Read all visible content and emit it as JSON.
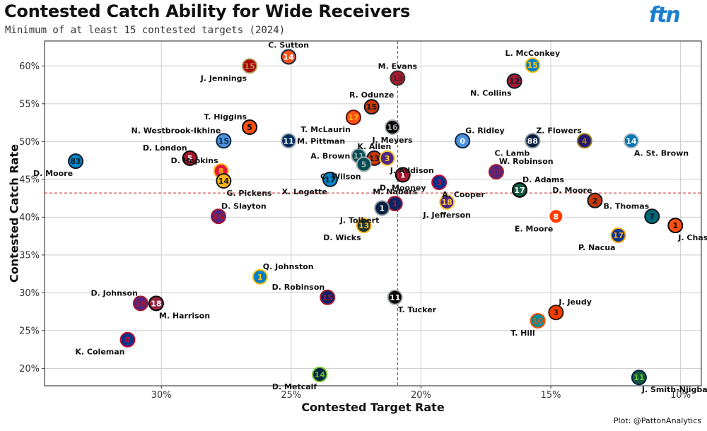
{
  "header": {
    "title": "Contested Catch Ability for Wide Receivers",
    "subtitle": "Minimum of at least 15 contested targets (2024)",
    "logo": "ftn"
  },
  "footer": {
    "credit": "Plot: @PattonAnalytics"
  },
  "chart_data": {
    "type": "scatter",
    "title": "Contested Catch Ability for Wide Receivers",
    "subtitle": "Minimum of at least 15 contested targets (2024)",
    "xlabel": "Contested Target Rate",
    "ylabel": "Contested Catch Rate",
    "x_axis_reversed": true,
    "xlim": [
      0.345,
      0.092
    ],
    "ylim": [
      0.177,
      0.633
    ],
    "x_ticks": [
      0.3,
      0.25,
      0.2,
      0.15,
      0.1
    ],
    "x_tick_labels": [
      "30%",
      "25%",
      "20%",
      "15%",
      "10%"
    ],
    "y_ticks": [
      0.2,
      0.25,
      0.3,
      0.35,
      0.4,
      0.45,
      0.5,
      0.55,
      0.6
    ],
    "y_tick_labels": [
      "20%",
      "25%",
      "30%",
      "35%",
      "40%",
      "45%",
      "50%",
      "55%",
      "60%"
    ],
    "grid": true,
    "reference_lines": {
      "x": 0.209,
      "y": 0.432,
      "color": "#cc2222",
      "style": "dashed"
    },
    "points": [
      {
        "name": "C. Sutton",
        "x": 0.251,
        "y": 0.612,
        "number": "14",
        "fill": "#fb4f14",
        "stroke": "#0a2343",
        "text_color": "#ffffff",
        "label_pos": "above"
      },
      {
        "name": "J. Jennings",
        "x": 0.266,
        "y": 0.6,
        "number": "15",
        "fill": "#aa0000",
        "stroke": "#b3995d",
        "text_color": "#b3995d",
        "label_pos": "below-left"
      },
      {
        "name": "M. Evans",
        "x": 0.209,
        "y": 0.584,
        "number": "13",
        "fill": "#a71930",
        "stroke": "#34302b",
        "text_color": "#34302b",
        "label_pos": "above"
      },
      {
        "name": "L. McConkey",
        "x": 0.157,
        "y": 0.601,
        "number": "15",
        "fill": "#0080c6",
        "stroke": "#ffc20e",
        "text_color": "#ffc20e",
        "label_pos": "above"
      },
      {
        "name": "N. Collins",
        "x": 0.164,
        "y": 0.58,
        "number": "12",
        "fill": "#a71930",
        "stroke": "#03202f",
        "text_color": "#03202f",
        "label_pos": "below-left"
      },
      {
        "name": "R. Odunze",
        "x": 0.219,
        "y": 0.546,
        "number": "15",
        "fill": "#c83803",
        "stroke": "#0b162a",
        "text_color": "#0b162a",
        "label_pos": "above"
      },
      {
        "name": "T. McLaurin",
        "x": 0.226,
        "y": 0.532,
        "number": "17",
        "fill": "#fb4f14",
        "stroke": "#5a1414",
        "text_color": "#ffb612",
        "label_pos": "below-left"
      },
      {
        "name": "T. Higgins",
        "x": 0.266,
        "y": 0.519,
        "number": "5",
        "fill": "#fb4f14",
        "stroke": "#000000",
        "text_color": "#000000",
        "label_pos": "above-left"
      },
      {
        "name": "J. Meyers",
        "x": 0.211,
        "y": 0.519,
        "number": "16",
        "fill": "#000000",
        "stroke": "#a5acaf",
        "text_color": "#a5acaf",
        "label_pos": "below"
      },
      {
        "name": "N. Westbrook-Ikhine",
        "x": 0.276,
        "y": 0.501,
        "number": "15",
        "fill": "#4b92db",
        "stroke": "#0c2340",
        "text_color": "#0c2340",
        "label_pos": "above-left"
      },
      {
        "name": "M. Pittman",
        "x": 0.251,
        "y": 0.501,
        "number": "11",
        "fill": "#002c5f",
        "stroke": "#a2aaad",
        "text_color": "#ffffff",
        "label_pos": "right"
      },
      {
        "name": "G. Ridley",
        "x": 0.184,
        "y": 0.501,
        "number": "0",
        "fill": "#4b92db",
        "stroke": "#0c2340",
        "text_color": "#ffffff",
        "label_pos": "above-right"
      },
      {
        "name": "C. Lamb",
        "x": 0.157,
        "y": 0.501,
        "number": "88",
        "fill": "#041e42",
        "stroke": "#869397",
        "text_color": "#ffffff",
        "label_pos": "below-left"
      },
      {
        "name": "Z. Flowers",
        "x": 0.137,
        "y": 0.501,
        "number": "4",
        "fill": "#241773",
        "stroke": "#9e7c0c",
        "text_color": "#9e7c0c",
        "label_pos": "above-left"
      },
      {
        "name": "A. St. Brown",
        "x": 0.119,
        "y": 0.501,
        "number": "14",
        "fill": "#0076b6",
        "stroke": "#b0b7bc",
        "text_color": "#ffffff",
        "label_pos": "below-right"
      },
      {
        "name": "D. Moore",
        "x": 0.333,
        "y": 0.474,
        "number": "83",
        "fill": "#0085ca",
        "stroke": "#101820",
        "text_color": "#101820",
        "label_pos": "below-left"
      },
      {
        "name": "D. London",
        "x": 0.289,
        "y": 0.478,
        "number": "5",
        "fill": "#a71930",
        "stroke": "#000000",
        "text_color": "#ffffff",
        "label_pos": "above-left"
      },
      {
        "name": "K. Allen",
        "x": 0.218,
        "y": 0.478,
        "number": "13",
        "fill": "#c83803",
        "stroke": "#0b162a",
        "text_color": "#0b162a",
        "label_pos": "above"
      },
      {
        "name": "A. Brown",
        "x": 0.224,
        "y": 0.481,
        "number": "11",
        "fill": "#004c54",
        "stroke": "#a5acaf",
        "text_color": "#a5acaf",
        "label_pos": "left"
      },
      {
        "name": "C. Wilson",
        "x": 0.222,
        "y": 0.47,
        "number": "5",
        "fill": "#004c54",
        "stroke": "#a5acaf",
        "text_color": "#a5acaf",
        "label_pos": "below-left"
      },
      {
        "name": "J. Addison",
        "x": 0.213,
        "y": 0.478,
        "number": "3",
        "fill": "#4f2683",
        "stroke": "#ffc62f",
        "text_color": "#ffc62f",
        "label_pos": "below-right"
      },
      {
        "name": "D. Hopkins",
        "x": 0.277,
        "y": 0.461,
        "number": "8",
        "fill": "#e31837",
        "stroke": "#ffb81c",
        "text_color": "#ffb81c",
        "label_pos": "above-left"
      },
      {
        "name": "G. Pickens",
        "x": 0.276,
        "y": 0.448,
        "number": "14",
        "fill": "#ffb612",
        "stroke": "#101820",
        "text_color": "#101820",
        "label_pos": "below-right"
      },
      {
        "name": "X. Legette",
        "x": 0.235,
        "y": 0.45,
        "number": "17",
        "fill": "#0085ca",
        "stroke": "#101820",
        "text_color": "#101820",
        "label_pos": "below-left"
      },
      {
        "name": "D. Mooney",
        "x": 0.207,
        "y": 0.456,
        "number": "1",
        "fill": "#a71930",
        "stroke": "#000000",
        "text_color": "#ffffff",
        "label_pos": "below"
      },
      {
        "name": "W. Robinson",
        "x": 0.171,
        "y": 0.46,
        "number": "17",
        "fill": "#4f2683",
        "stroke": "#a71930",
        "text_color": "#a71930",
        "label_pos": "above-right"
      },
      {
        "name": "A. Cooper",
        "x": 0.193,
        "y": 0.446,
        "number": "3",
        "fill": "#00338d",
        "stroke": "#c60c30",
        "text_color": "#c60c30",
        "label_pos": "below-right"
      },
      {
        "name": "D. Adams",
        "x": 0.162,
        "y": 0.436,
        "number": "17",
        "fill": "#125740",
        "stroke": "#000000",
        "text_color": "#ffffff",
        "label_pos": "above-right"
      },
      {
        "name": "D. Moore",
        "x": 0.133,
        "y": 0.422,
        "number": "2",
        "fill": "#c83803",
        "stroke": "#0b162a",
        "text_color": "#0b162a",
        "label_pos": "above-left"
      },
      {
        "name": "M. Nabers",
        "x": 0.21,
        "y": 0.418,
        "number": "1",
        "fill": "#0b2265",
        "stroke": "#a71930",
        "text_color": "#a71930",
        "label_pos": "above"
      },
      {
        "name": "J. Tolbert",
        "x": 0.215,
        "y": 0.412,
        "number": "1",
        "fill": "#041e42",
        "stroke": "#869397",
        "text_color": "#ffffff",
        "label_pos": "below-left"
      },
      {
        "name": "J. Jefferson",
        "x": 0.19,
        "y": 0.42,
        "number": "18",
        "fill": "#4f2683",
        "stroke": "#ffc62f",
        "text_color": "#ffc62f",
        "label_pos": "below"
      },
      {
        "name": "D. Slayton",
        "x": 0.278,
        "y": 0.401,
        "number": "86",
        "fill": "#4f2683",
        "stroke": "#a71930",
        "text_color": "#a71930",
        "label_pos": "above-right"
      },
      {
        "name": "B. Thomas",
        "x": 0.111,
        "y": 0.401,
        "number": "7",
        "fill": "#006778",
        "stroke": "#101820",
        "text_color": "#101820",
        "label_pos": "above-left"
      },
      {
        "name": "E. Moore",
        "x": 0.148,
        "y": 0.401,
        "number": "8",
        "fill": "#ff3c00",
        "stroke": "#ffffff",
        "text_color": "#ffffff",
        "label_pos": "below-left"
      },
      {
        "name": "J. Chase",
        "x": 0.102,
        "y": 0.389,
        "number": "1",
        "fill": "#fb4f14",
        "stroke": "#000000",
        "text_color": "#000000",
        "label_pos": "below-right"
      },
      {
        "name": "D. Wicks",
        "x": 0.222,
        "y": 0.389,
        "number": "13",
        "fill": "#203731",
        "stroke": "#ffb612",
        "text_color": "#ffb612",
        "label_pos": "below-left"
      },
      {
        "name": "P. Nacua",
        "x": 0.124,
        "y": 0.376,
        "number": "17",
        "fill": "#003594",
        "stroke": "#ffa300",
        "text_color": "#ffa300",
        "label_pos": "below-left"
      },
      {
        "name": "Q. Johnston",
        "x": 0.262,
        "y": 0.321,
        "number": "1",
        "fill": "#0080c6",
        "stroke": "#ffc20e",
        "text_color": "#ffc20e",
        "label_pos": "above-right"
      },
      {
        "name": "D. Robinson",
        "x": 0.236,
        "y": 0.294,
        "number": "15",
        "fill": "#0b2265",
        "stroke": "#a71930",
        "text_color": "#a71930",
        "label_pos": "above-left"
      },
      {
        "name": "T. Tucker",
        "x": 0.21,
        "y": 0.294,
        "number": "11",
        "fill": "#000000",
        "stroke": "#a5acaf",
        "text_color": "#ffffff",
        "label_pos": "below-right"
      },
      {
        "name": "D. Johnson",
        "x": 0.308,
        "y": 0.286,
        "number": "18",
        "fill": "#4f2683",
        "stroke": "#a71930",
        "text_color": "#a71930",
        "label_pos": "above-left"
      },
      {
        "name": "M. Harrison",
        "x": 0.302,
        "y": 0.286,
        "number": "18",
        "fill": "#97233f",
        "stroke": "#000000",
        "text_color": "#ffffff",
        "label_pos": "below-right"
      },
      {
        "name": "J. Jeudy",
        "x": 0.148,
        "y": 0.274,
        "number": "3",
        "fill": "#ff3c00",
        "stroke": "#311d00",
        "text_color": "#311d00",
        "label_pos": "above-right"
      },
      {
        "name": "T. Hill",
        "x": 0.155,
        "y": 0.263,
        "number": "10",
        "fill": "#008e97",
        "stroke": "#fc4c02",
        "text_color": "#fc4c02",
        "label_pos": "below-left"
      },
      {
        "name": "K. Coleman",
        "x": 0.313,
        "y": 0.238,
        "number": "0",
        "fill": "#00338d",
        "stroke": "#c60c30",
        "text_color": "#c60c30",
        "label_pos": "below-left"
      },
      {
        "name": "D. Metcalf",
        "x": 0.239,
        "y": 0.192,
        "number": "14",
        "fill": "#002244",
        "stroke": "#69be28",
        "text_color": "#69be28",
        "label_pos": "below-left"
      },
      {
        "name": "J. Smith-Njigba",
        "x": 0.116,
        "y": 0.188,
        "number": "11",
        "fill": "#125740",
        "stroke": "#002244",
        "text_color": "#69be28",
        "label_pos": "below-right"
      }
    ]
  }
}
